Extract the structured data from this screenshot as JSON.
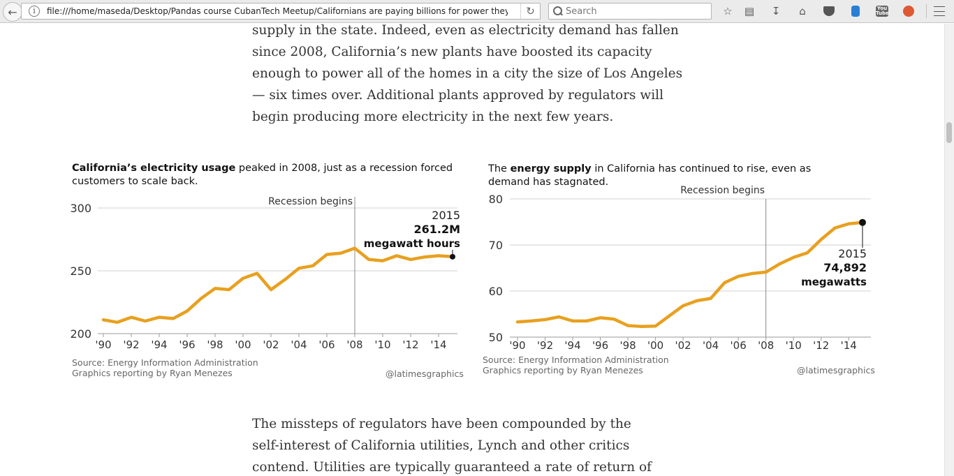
{
  "browser": {
    "url": "file:///home/maseda/Desktop/Pandas course CubanTech Meetup/Californians are paying billions for power they don't",
    "search_placeholder": "Search"
  },
  "article": {
    "para1_lines": [
      "supply in the state. Indeed, even as electricity demand has fallen",
      "since 2008, California’s new plants have boosted its capacity",
      "enough to power all of the homes in a city the size of Los Angeles",
      "— six times over. Additional plants approved by regulators will",
      "begin producing more electricity in the next few years."
    ],
    "para2_lines": [
      "The missteps of regulators have been compounded by the",
      "self-interest of California utilities, Lynch and other critics",
      "contend. Utilities are typically guaranteed a rate of return of"
    ]
  },
  "charts": {
    "usage": {
      "title_bold": "California’s electricity usage",
      "title_rest": " peaked in 2008, just as a recession forced",
      "title_line2": "customers to scale back.",
      "source_line1": "Source: Energy Information Administration",
      "source_line2": "Graphics reporting by Ryan Menezes",
      "credit": "@latimesgraphics"
    },
    "supply": {
      "title_pre": "The ",
      "title_bold": "energy supply",
      "title_rest": " in California has continued to rise, even as",
      "title_line2": "demand has stagnated.",
      "source_line1": "Source: Energy Information Administration",
      "source_line2": "Graphics reporting by Ryan Menezes",
      "credit": "@latimesgraphics"
    }
  },
  "chart_data": [
    {
      "type": "line",
      "x": [
        1990,
        1991,
        1992,
        1993,
        1994,
        1995,
        1996,
        1997,
        1998,
        1999,
        2000,
        2001,
        2002,
        2003,
        2004,
        2005,
        2006,
        2007,
        2008,
        2009,
        2010,
        2011,
        2012,
        2013,
        2014,
        2015
      ],
      "series": [
        {
          "values": [
            211,
            209,
            213,
            210,
            213,
            212,
            218,
            228,
            236,
            235,
            244,
            248,
            235,
            243,
            252,
            254,
            263,
            264,
            268,
            259,
            258,
            262,
            259,
            261,
            262,
            261.2
          ]
        }
      ],
      "ylim": [
        200,
        300
      ],
      "yticks": [
        200,
        250,
        300
      ],
      "xtick_labels": [
        "'90",
        "'92",
        "'94",
        "'96",
        "'98",
        "'00",
        "'02",
        "'04",
        "'06",
        "'08",
        "'10",
        "'12",
        "'14"
      ],
      "annotation_vline": {
        "x": 2008,
        "label": "Recession begins"
      },
      "end_label": {
        "year": "2015",
        "value": "261.2M",
        "unit": "megawatt hours"
      },
      "color": "#e8a01f"
    },
    {
      "type": "line",
      "x": [
        1990,
        1991,
        1992,
        1993,
        1994,
        1995,
        1996,
        1997,
        1998,
        1999,
        2000,
        2001,
        2002,
        2003,
        2004,
        2005,
        2006,
        2007,
        2008,
        2009,
        2010,
        2011,
        2012,
        2013,
        2014,
        2015
      ],
      "series": [
        {
          "values": [
            53.3,
            53.5,
            53.8,
            54.4,
            53.5,
            53.5,
            54.2,
            53.9,
            52.5,
            52.3,
            52.4,
            54.6,
            56.8,
            57.9,
            58.4,
            61.8,
            63.2,
            63.8,
            64.1,
            65.9,
            67.3,
            68.3,
            71.2,
            73.7,
            74.6,
            74.892
          ]
        }
      ],
      "ylim": [
        50,
        80
      ],
      "yticks": [
        50,
        60,
        70,
        80
      ],
      "xtick_labels": [
        "'90",
        "'92",
        "'94",
        "'96",
        "'98",
        "'00",
        "'02",
        "'04",
        "'06",
        "'08",
        "'10",
        "'12",
        "'14"
      ],
      "annotation_vline": {
        "x": 2008,
        "label": "Recession begins"
      },
      "end_label": {
        "year": "2015",
        "value": "74,892",
        "unit": "megawatts"
      },
      "color": "#e8a01f"
    }
  ]
}
